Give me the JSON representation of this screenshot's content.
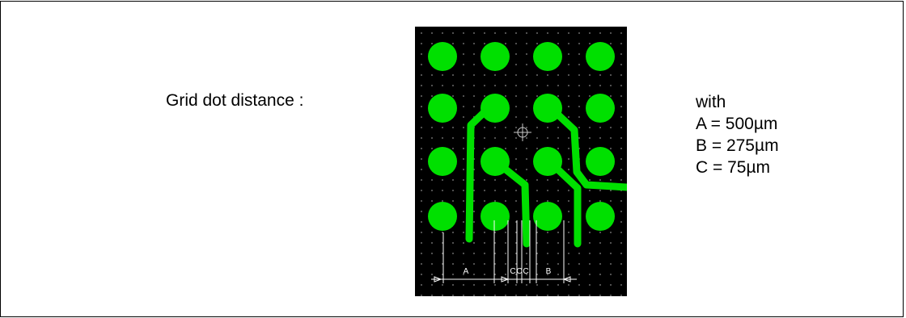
{
  "caption": {
    "left_label": "Grid dot distance :"
  },
  "legend": {
    "intro": "with",
    "lines": [
      "A = 500µm",
      "B = 275µm",
      "C = 75µm"
    ]
  },
  "diagram": {
    "dimension_labels": [
      "A",
      "C",
      "C",
      "C",
      "B"
    ],
    "colors": {
      "background": "#000000",
      "pad": "#00e000",
      "trace": "#00e000",
      "grid_dot": "#8a8a8a",
      "dimension_line": "#ffffff"
    }
  }
}
